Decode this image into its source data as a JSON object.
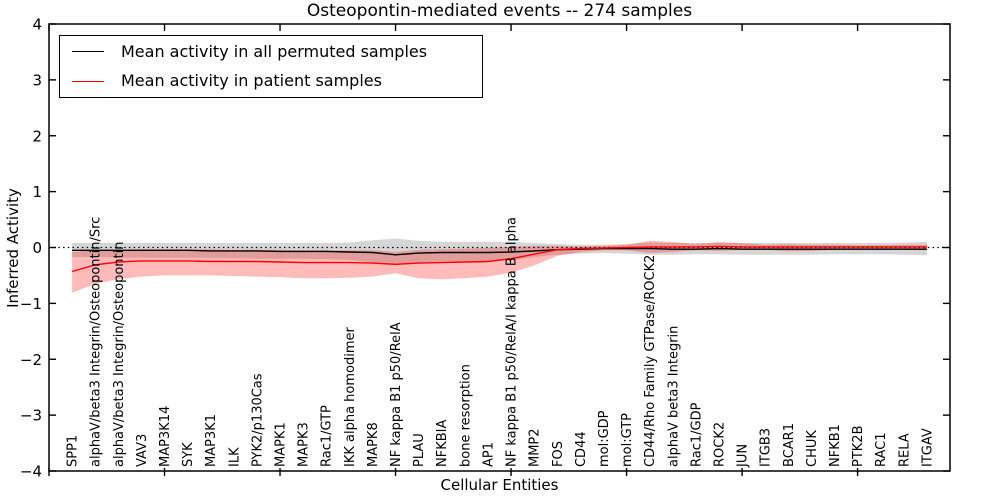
{
  "figure": {
    "title": "Osteopontin-mediated events -- 274 samples"
  },
  "chart_data": {
    "type": "line",
    "title": "Osteopontin-mediated events -- 274 samples",
    "xlabel": "Cellular Entities",
    "ylabel": "Inferred Activity",
    "ylim": [
      -4,
      4
    ],
    "yticks": [
      4,
      3,
      2,
      1,
      0,
      -1,
      -2,
      -3,
      -4
    ],
    "xtick_positions": [
      0,
      5,
      10,
      15,
      20,
      25,
      30,
      35
    ],
    "grid": false,
    "legend_position": "upper left",
    "zero_line": {
      "style": "dotted",
      "color": "#000000",
      "y": 0
    },
    "categories": [
      "SPP1",
      "alphaV/beta3 Integrin/Osteopontin/Src",
      "alphaV/beta3 Integrin/Osteopontin",
      "VAV3",
      "MAP3K14",
      "SYK",
      "MAP3K1",
      "ILK",
      "PYK2/p130Cas",
      "MAPK1",
      "MAPK3",
      "Rac1/GTP",
      "IKK alpha homodimer",
      "MAPK8",
      "NF kappa B1 p50/RelA",
      "PLAU",
      "NFKBIA",
      "bone resorption",
      "AP1",
      "NF kappa B1 p50/RelA/I kappa B alpha",
      "MMP2",
      "FOS",
      "CD44",
      "mol:GDP",
      "mol:GTP",
      "CD44/Rho Family GTPase/ROCK2",
      "alphaV beta3 Integrin",
      "Rac1/GDP",
      "ROCK2",
      "JUN",
      "ITGB3",
      "BCAR1",
      "CHUK",
      "NFKB1",
      "PTK2B",
      "RAC1",
      "RELA",
      "ITGAV"
    ],
    "series": [
      {
        "name": "Mean activity in all permuted samples",
        "color": "#000000",
        "band_color": "rgba(0,0,0,0.16)",
        "values": [
          -0.05,
          -0.05,
          -0.05,
          -0.05,
          -0.05,
          -0.05,
          -0.06,
          -0.06,
          -0.06,
          -0.07,
          -0.07,
          -0.07,
          -0.08,
          -0.09,
          -0.13,
          -0.1,
          -0.09,
          -0.09,
          -0.09,
          -0.08,
          -0.06,
          -0.04,
          -0.03,
          -0.02,
          -0.02,
          -0.02,
          -0.03,
          -0.03,
          -0.02,
          -0.03,
          -0.03,
          -0.03,
          -0.03,
          -0.03,
          -0.03,
          -0.03,
          -0.03,
          -0.03
        ],
        "band_upper": [
          0.08,
          0.08,
          0.08,
          0.08,
          0.08,
          0.08,
          0.08,
          0.08,
          0.08,
          0.08,
          0.08,
          0.08,
          0.09,
          0.13,
          0.16,
          0.12,
          0.1,
          0.1,
          0.1,
          0.1,
          0.08,
          0.06,
          0.05,
          0.05,
          0.06,
          0.09,
          0.08,
          0.08,
          0.08,
          0.08,
          0.08,
          0.08,
          0.08,
          0.08,
          0.08,
          0.08,
          0.09,
          0.1
        ],
        "band_lower": [
          -0.17,
          -0.17,
          -0.18,
          -0.18,
          -0.18,
          -0.18,
          -0.19,
          -0.19,
          -0.2,
          -0.2,
          -0.2,
          -0.21,
          -0.22,
          -0.27,
          -0.32,
          -0.27,
          -0.25,
          -0.25,
          -0.24,
          -0.23,
          -0.17,
          -0.13,
          -0.11,
          -0.1,
          -0.11,
          -0.13,
          -0.13,
          -0.12,
          -0.12,
          -0.13,
          -0.13,
          -0.13,
          -0.13,
          -0.12,
          -0.12,
          -0.12,
          -0.13,
          -0.14
        ]
      },
      {
        "name": "Mean activity in patient samples",
        "color": "#ff0000",
        "band_color": "rgba(255,0,0,0.27)",
        "values": [
          -0.43,
          -0.31,
          -0.26,
          -0.24,
          -0.24,
          -0.24,
          -0.25,
          -0.25,
          -0.25,
          -0.26,
          -0.27,
          -0.27,
          -0.27,
          -0.28,
          -0.3,
          -0.28,
          -0.27,
          -0.26,
          -0.25,
          -0.2,
          -0.12,
          -0.04,
          -0.02,
          -0.01,
          0.0,
          0.01,
          0.01,
          0.01,
          0.02,
          0.01,
          0.01,
          0.01,
          0.01,
          0.01,
          0.01,
          0.01,
          0.01,
          0.01
        ],
        "band_upper": [
          -0.08,
          -0.05,
          -0.04,
          -0.03,
          -0.03,
          -0.03,
          -0.03,
          -0.04,
          -0.04,
          -0.04,
          -0.05,
          -0.05,
          -0.05,
          -0.05,
          -0.08,
          -0.04,
          -0.03,
          -0.02,
          -0.01,
          0.01,
          0.03,
          0.03,
          0.02,
          0.03,
          0.05,
          0.12,
          0.1,
          0.06,
          0.1,
          0.08,
          0.05,
          0.06,
          0.05,
          0.05,
          0.04,
          0.04,
          0.05,
          0.05
        ],
        "band_lower": [
          -0.81,
          -0.65,
          -0.57,
          -0.52,
          -0.5,
          -0.5,
          -0.5,
          -0.51,
          -0.52,
          -0.53,
          -0.55,
          -0.55,
          -0.54,
          -0.52,
          -0.46,
          -0.55,
          -0.57,
          -0.55,
          -0.52,
          -0.45,
          -0.32,
          -0.15,
          -0.08,
          -0.05,
          -0.05,
          -0.1,
          -0.08,
          -0.05,
          -0.06,
          -0.04,
          -0.04,
          -0.07,
          -0.06,
          -0.04,
          -0.03,
          -0.03,
          -0.04,
          -0.05
        ]
      }
    ]
  }
}
